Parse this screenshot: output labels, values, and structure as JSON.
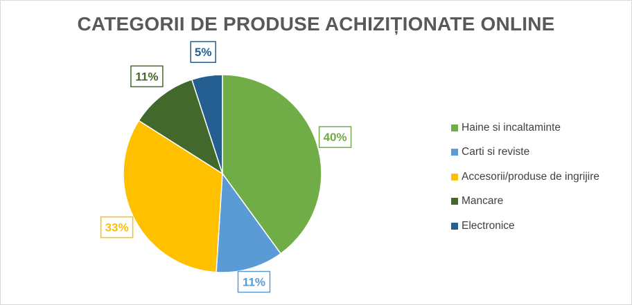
{
  "chart_data": {
    "type": "pie",
    "title": "CATEGORII DE PRODUSE ACHIZIȚIONATE ONLINE",
    "categories": [
      "Haine si incaltaminte",
      "Carti si reviste",
      "Accesorii/produse de ingrijire",
      "Mancare",
      "Electronice"
    ],
    "values": [
      40,
      11,
      33,
      11,
      5
    ],
    "labels": [
      "40%",
      "11%",
      "33%",
      "11%",
      "5%"
    ],
    "colors": [
      "#70ad47",
      "#5b9bd5",
      "#ffc000",
      "#43682b",
      "#255e91"
    ],
    "legend_position": "right"
  }
}
